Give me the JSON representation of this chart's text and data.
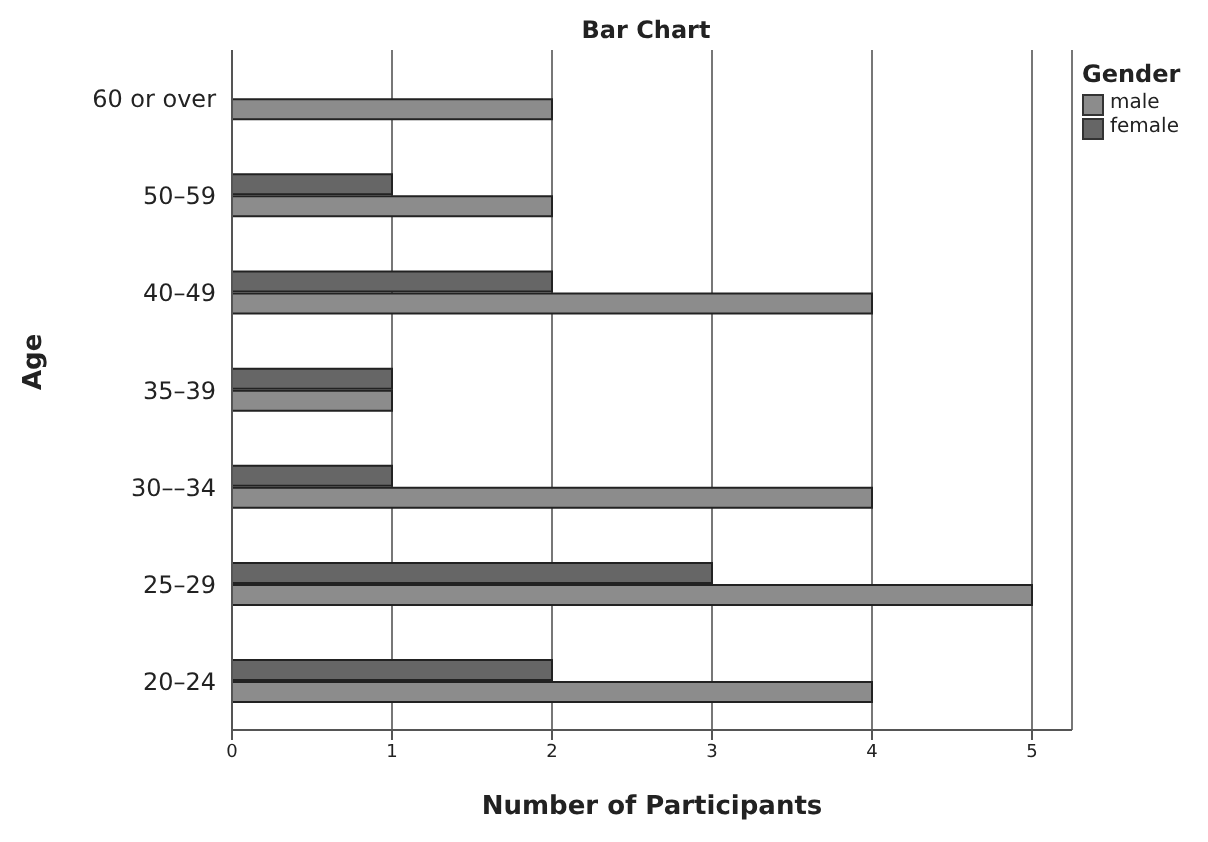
{
  "chart_data": {
    "type": "bar",
    "orientation": "horizontal",
    "title": "Bar Chart",
    "xlabel": "Number of Participants",
    "ylabel": "Age",
    "legend_title": "Gender",
    "legend": "top right",
    "grid": "x",
    "categories": [
      "60 or over",
      "50–59",
      "40–49",
      "35–39",
      "30––34",
      "25–29",
      "20–24"
    ],
    "series": [
      {
        "name": "male",
        "color": "#8c8c8c",
        "values": [
          2,
          2,
          4,
          1,
          4,
          5,
          4
        ]
      },
      {
        "name": "female",
        "color": "#666666",
        "values": [
          null,
          1,
          2,
          1,
          1,
          3,
          2
        ]
      }
    ],
    "xlim": [
      0,
      5.25
    ],
    "xticks": [
      0,
      1,
      2,
      3,
      4,
      5
    ]
  }
}
